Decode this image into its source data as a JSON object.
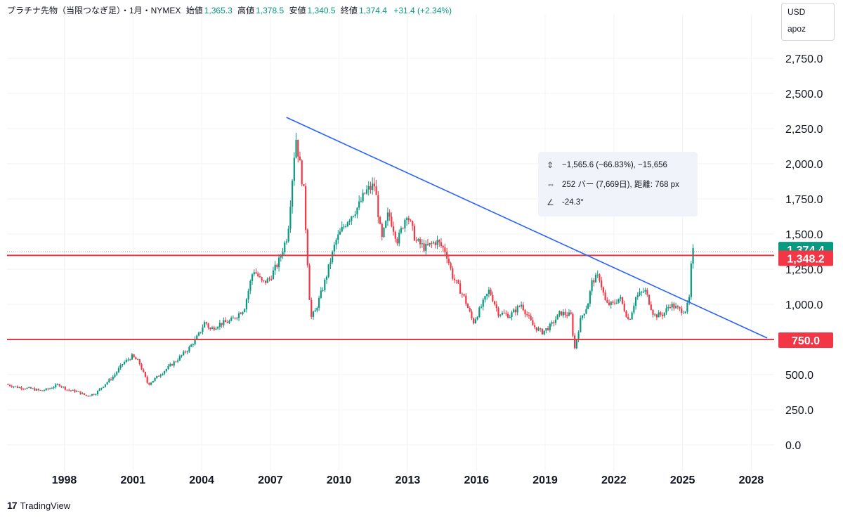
{
  "header": {
    "title": "プラチナ先物（当限つなぎ足）・1月・NYMEX",
    "open_label": "始値",
    "open": "1,365.3",
    "high_label": "高値",
    "high": "1,378.5",
    "low_label": "安値",
    "low": "1,340.5",
    "close_label": "終値",
    "close": "1,374.4",
    "change": "+31.4 (+2.34%)"
  },
  "axis_box": {
    "currency": "USD",
    "user": "apoz"
  },
  "tooltip": {
    "price_icon": "vertical-range-icon",
    "price_range": "−1,565.6 (−66.83%), −15,656",
    "bars_icon": "horizontal-range-icon",
    "bars_range": "252 バー (7,669日), 距離: 768 px",
    "angle_icon": "angle-icon",
    "angle": "-24.3°"
  },
  "footer": {
    "brand": "TradingView",
    "logo_icon": "tradingview-logo-icon"
  },
  "colors": {
    "up": "#089981",
    "down": "#f23645",
    "trendline": "#2962ff",
    "level": "#e03b4a",
    "grid": "#f0f3fa"
  },
  "chart_data": {
    "type": "candlestick",
    "title": "プラチナ先物（当限つなぎ足）・1月・NYMEX",
    "currency": "USD",
    "y_ticks": [
      "0.0",
      "250.0",
      "500.0",
      "750.0",
      "1,000.0",
      "1,250.0",
      "1,500.0",
      "1,750.0",
      "2,000.0",
      "2,250.0",
      "2,500.0",
      "2,750.0"
    ],
    "x_ticks": [
      "1998",
      "2001",
      "2004",
      "2007",
      "2010",
      "2013",
      "2016",
      "2019",
      "2022",
      "2025",
      "2028"
    ],
    "xlim": [
      1995.5,
      2029.0
    ],
    "ylim": [
      -135,
      3015
    ],
    "grid": true,
    "price_path": [
      [
        1995.5,
        430
      ],
      [
        1996.0,
        410
      ],
      [
        1996.6,
        400
      ],
      [
        1997.0,
        385
      ],
      [
        1997.3,
        395
      ],
      [
        1997.8,
        430
      ],
      [
        1998.2,
        390
      ],
      [
        1998.6,
        380
      ],
      [
        1999.0,
        350
      ],
      [
        1999.4,
        365
      ],
      [
        1999.8,
        430
      ],
      [
        2000.2,
        490
      ],
      [
        2000.6,
        580
      ],
      [
        2001.0,
        630
      ],
      [
        2001.3,
        590
      ],
      [
        2001.7,
        430
      ],
      [
        2002.0,
        470
      ],
      [
        2002.5,
        540
      ],
      [
        2003.0,
        610
      ],
      [
        2003.5,
        690
      ],
      [
        2003.9,
        780
      ],
      [
        2004.2,
        880
      ],
      [
        2004.4,
        820
      ],
      [
        2004.8,
        860
      ],
      [
        2005.3,
        880
      ],
      [
        2005.9,
        970
      ],
      [
        2006.3,
        1250
      ],
      [
        2006.7,
        1150
      ],
      [
        2007.0,
        1180
      ],
      [
        2007.4,
        1300
      ],
      [
        2007.8,
        1500
      ],
      [
        2008.15,
        2200
      ],
      [
        2008.5,
        1800
      ],
      [
        2008.8,
        900
      ],
      [
        2009.0,
        950
      ],
      [
        2009.4,
        1150
      ],
      [
        2009.9,
        1450
      ],
      [
        2010.4,
        1600
      ],
      [
        2010.9,
        1700
      ],
      [
        2011.2,
        1800
      ],
      [
        2011.6,
        1850
      ],
      [
        2011.9,
        1450
      ],
      [
        2012.2,
        1650
      ],
      [
        2012.6,
        1450
      ],
      [
        2013.0,
        1650
      ],
      [
        2013.4,
        1450
      ],
      [
        2013.8,
        1400
      ],
      [
        2014.3,
        1450
      ],
      [
        2014.7,
        1380
      ],
      [
        2015.0,
        1200
      ],
      [
        2015.5,
        1050
      ],
      [
        2015.9,
        870
      ],
      [
        2016.3,
        1000
      ],
      [
        2016.6,
        1100
      ],
      [
        2017.0,
        940
      ],
      [
        2017.5,
        920
      ],
      [
        2018.0,
        1000
      ],
      [
        2018.5,
        850
      ],
      [
        2018.9,
        800
      ],
      [
        2019.3,
        850
      ],
      [
        2019.7,
        940
      ],
      [
        2020.2,
        920
      ],
      [
        2020.3,
        660
      ],
      [
        2020.6,
        900
      ],
      [
        2020.9,
        1000
      ],
      [
        2021.1,
        1170
      ],
      [
        2021.4,
        1200
      ],
      [
        2021.7,
        1000
      ],
      [
        2022.0,
        1000
      ],
      [
        2022.3,
        1050
      ],
      [
        2022.7,
        880
      ],
      [
        2023.0,
        1050
      ],
      [
        2023.4,
        1100
      ],
      [
        2023.8,
        920
      ],
      [
        2024.2,
        930
      ],
      [
        2024.5,
        1000
      ],
      [
        2024.9,
        960
      ],
      [
        2025.2,
        960
      ],
      [
        2025.35,
        1050
      ],
      [
        2025.45,
        1374
      ]
    ],
    "last_price": "1,374.4",
    "levels": [
      {
        "value": 1348.2,
        "label": "1,348.2"
      },
      {
        "value": 750.0,
        "label": "750.0"
      }
    ],
    "trendline": {
      "from": [
        2007.7,
        2330
      ],
      "to": [
        2028.7,
        760
      ]
    }
  }
}
